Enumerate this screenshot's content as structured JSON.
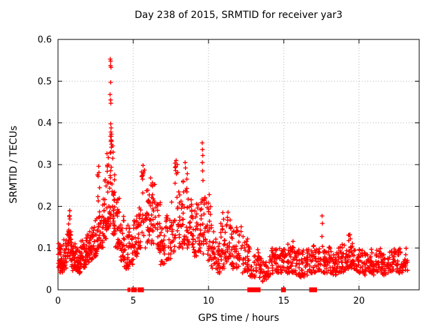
{
  "chart_data": {
    "type": "scatter",
    "title": "Day 238 of 2015, SRMTID for receiver yar3",
    "xlabel": "GPS time / hours",
    "ylabel": "SRMTID / TECUs",
    "xlim": [
      0,
      24
    ],
    "ylim": [
      0,
      0.6
    ],
    "xticks": [
      0,
      5,
      10,
      15,
      20
    ],
    "yticks": [
      0,
      0.1,
      0.2,
      0.3,
      0.4,
      0.5,
      0.6
    ],
    "grid": true,
    "legend": "none",
    "marker": "plus",
    "marker_color": "#ff0000",
    "grid_color": "#b0b0b0",
    "axis_color": "#000000",
    "background_color": "#ffffff",
    "series_name": "SRMTID",
    "bands_format": [
      "t_start_hours",
      "t_end_hours",
      "n_points",
      "value_min_TECU",
      "value_max_TECU"
    ],
    "bands": [
      [
        0.0,
        0.3,
        28,
        0.05,
        0.115
      ],
      [
        0.05,
        0.45,
        14,
        0.04,
        0.09
      ],
      [
        0.3,
        0.6,
        22,
        0.05,
        0.12
      ],
      [
        0.6,
        0.9,
        26,
        0.07,
        0.15
      ],
      [
        0.7,
        0.85,
        9,
        0.13,
        0.19
      ],
      [
        0.9,
        1.2,
        32,
        0.045,
        0.115
      ],
      [
        1.2,
        1.5,
        32,
        0.035,
        0.1
      ],
      [
        1.5,
        1.8,
        28,
        0.05,
        0.12
      ],
      [
        1.8,
        2.1,
        30,
        0.06,
        0.135
      ],
      [
        2.1,
        2.4,
        28,
        0.07,
        0.15
      ],
      [
        2.4,
        2.65,
        22,
        0.08,
        0.18
      ],
      [
        2.6,
        2.8,
        10,
        0.14,
        0.295
      ],
      [
        2.65,
        3.0,
        26,
        0.1,
        0.22
      ],
      [
        3.0,
        3.25,
        26,
        0.12,
        0.27
      ],
      [
        3.25,
        3.45,
        22,
        0.14,
        0.33
      ],
      [
        3.42,
        3.62,
        16,
        0.15,
        0.35
      ],
      [
        3.44,
        3.56,
        5,
        0.31,
        0.385
      ],
      [
        3.6,
        3.8,
        26,
        0.13,
        0.3
      ],
      [
        3.8,
        4.1,
        28,
        0.1,
        0.22
      ],
      [
        4.1,
        4.4,
        26,
        0.07,
        0.185
      ],
      [
        4.4,
        4.7,
        24,
        0.05,
        0.16
      ],
      [
        4.7,
        5.0,
        22,
        0.06,
        0.15
      ],
      [
        5.0,
        5.3,
        24,
        0.08,
        0.185
      ],
      [
        5.3,
        5.55,
        20,
        0.1,
        0.21
      ],
      [
        5.55,
        5.8,
        14,
        0.13,
        0.3
      ],
      [
        5.8,
        6.1,
        26,
        0.1,
        0.24
      ],
      [
        6.1,
        6.45,
        28,
        0.11,
        0.26
      ],
      [
        6.45,
        6.8,
        26,
        0.09,
        0.21
      ],
      [
        6.8,
        7.15,
        24,
        0.06,
        0.15
      ],
      [
        7.15,
        7.5,
        24,
        0.07,
        0.185
      ],
      [
        7.5,
        7.75,
        18,
        0.09,
        0.22
      ],
      [
        7.75,
        8.0,
        15,
        0.12,
        0.31
      ],
      [
        8.0,
        8.3,
        26,
        0.1,
        0.25
      ],
      [
        8.3,
        8.6,
        22,
        0.11,
        0.3
      ],
      [
        8.6,
        8.9,
        24,
        0.1,
        0.22
      ],
      [
        8.9,
        9.2,
        24,
        0.08,
        0.19
      ],
      [
        9.2,
        9.55,
        24,
        0.09,
        0.21
      ],
      [
        9.5,
        9.8,
        20,
        0.08,
        0.23
      ],
      [
        9.8,
        10.15,
        26,
        0.07,
        0.22
      ],
      [
        10.15,
        10.5,
        24,
        0.05,
        0.16
      ],
      [
        10.5,
        10.8,
        22,
        0.04,
        0.12
      ],
      [
        10.8,
        11.1,
        24,
        0.05,
        0.17
      ],
      [
        11.1,
        11.45,
        24,
        0.06,
        0.185
      ],
      [
        11.45,
        11.8,
        24,
        0.05,
        0.16
      ],
      [
        11.8,
        12.2,
        26,
        0.05,
        0.17
      ],
      [
        12.2,
        12.6,
        24,
        0.04,
        0.13
      ],
      [
        12.6,
        13.0,
        22,
        0.03,
        0.115
      ],
      [
        13.0,
        13.35,
        20,
        0.03,
        0.1
      ],
      [
        13.35,
        13.7,
        22,
        0.02,
        0.08
      ],
      [
        13.7,
        14.1,
        24,
        0.025,
        0.085
      ],
      [
        14.1,
        14.5,
        26,
        0.03,
        0.1
      ],
      [
        14.5,
        14.85,
        24,
        0.035,
        0.105
      ],
      [
        14.85,
        15.2,
        24,
        0.04,
        0.1
      ],
      [
        15.2,
        15.45,
        20,
        0.04,
        0.115
      ],
      [
        15.45,
        15.7,
        20,
        0.04,
        0.12
      ],
      [
        15.7,
        16.05,
        24,
        0.035,
        0.105
      ],
      [
        16.05,
        16.4,
        24,
        0.03,
        0.095
      ],
      [
        16.4,
        16.75,
        22,
        0.035,
        0.1
      ],
      [
        16.75,
        17.1,
        24,
        0.04,
        0.11
      ],
      [
        17.1,
        17.45,
        22,
        0.04,
        0.1
      ],
      [
        17.45,
        17.8,
        22,
        0.04,
        0.1
      ],
      [
        17.8,
        18.15,
        24,
        0.04,
        0.105
      ],
      [
        18.15,
        18.5,
        24,
        0.035,
        0.1
      ],
      [
        18.5,
        18.85,
        24,
        0.04,
        0.105
      ],
      [
        18.85,
        19.2,
        24,
        0.04,
        0.11
      ],
      [
        19.2,
        19.45,
        18,
        0.05,
        0.135
      ],
      [
        19.45,
        19.8,
        24,
        0.05,
        0.115
      ],
      [
        19.8,
        20.15,
        24,
        0.04,
        0.1
      ],
      [
        20.15,
        20.5,
        22,
        0.035,
        0.095
      ],
      [
        20.5,
        20.85,
        22,
        0.04,
        0.1
      ],
      [
        20.85,
        21.2,
        22,
        0.035,
        0.095
      ],
      [
        21.2,
        21.55,
        22,
        0.04,
        0.1
      ],
      [
        21.55,
        21.9,
        22,
        0.035,
        0.095
      ],
      [
        21.9,
        22.25,
        22,
        0.04,
        0.1
      ],
      [
        22.25,
        22.6,
        22,
        0.04,
        0.105
      ],
      [
        22.6,
        22.95,
        22,
        0.04,
        0.1
      ],
      [
        22.95,
        23.25,
        18,
        0.045,
        0.1
      ]
    ],
    "notable_points": [
      [
        3.47,
        0.553
      ],
      [
        3.5,
        0.548
      ],
      [
        3.49,
        0.537
      ],
      [
        3.52,
        0.533
      ],
      [
        3.5,
        0.497
      ],
      [
        3.46,
        0.468
      ],
      [
        3.49,
        0.455
      ],
      [
        3.51,
        0.447
      ],
      [
        3.5,
        0.398
      ],
      [
        3.53,
        0.388
      ],
      [
        3.51,
        0.378
      ],
      [
        3.54,
        0.368
      ],
      [
        3.52,
        0.359
      ],
      [
        3.55,
        0.349
      ],
      [
        3.63,
        0.345
      ],
      [
        3.66,
        0.33
      ],
      [
        3.64,
        0.315
      ],
      [
        9.58,
        0.352
      ],
      [
        9.6,
        0.336
      ],
      [
        9.62,
        0.322
      ],
      [
        9.59,
        0.305
      ],
      [
        9.61,
        0.285
      ],
      [
        9.63,
        0.262
      ],
      [
        17.55,
        0.177
      ],
      [
        17.56,
        0.159
      ],
      [
        17.54,
        0.128
      ],
      [
        17.57,
        0.104
      ],
      [
        19.3,
        0.131
      ],
      [
        19.32,
        0.118
      ],
      [
        0.78,
        0.19
      ],
      [
        0.76,
        0.178
      ],
      [
        2.7,
        0.296
      ],
      [
        2.72,
        0.281
      ],
      [
        5.65,
        0.298
      ],
      [
        5.68,
        0.282
      ],
      [
        5.62,
        0.265
      ],
      [
        7.85,
        0.31
      ],
      [
        7.83,
        0.295
      ],
      [
        7.87,
        0.278
      ],
      [
        8.45,
        0.305
      ],
      [
        8.47,
        0.292
      ],
      [
        6.15,
        0.268
      ],
      [
        10.05,
        0.228
      ],
      [
        10.95,
        0.185
      ],
      [
        11.3,
        0.186
      ]
    ],
    "zero_square_times": [
      5.02,
      5.08,
      5.45,
      5.55,
      12.75,
      12.88,
      13.15,
      13.3,
      14.98,
      16.85,
      16.95,
      17.05
    ],
    "zero_plus_times": [
      4.65,
      4.72,
      4.78,
      12.62,
      13.08
    ]
  }
}
